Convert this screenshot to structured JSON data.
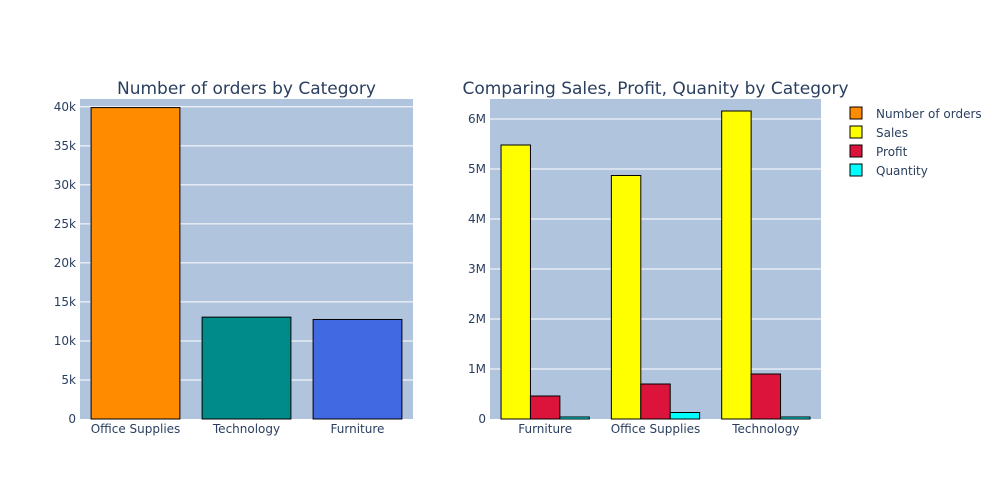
{
  "colors": {
    "plot_bg": "#b0c4de",
    "grid": "#ffffff",
    "bar_outline": "#000000",
    "text": "#2a3f5f"
  },
  "chart_data": [
    {
      "type": "bar",
      "title": "Number of orders by Category",
      "categories": [
        "Office Supplies",
        "Technology",
        "Furniture"
      ],
      "values": [
        39900,
        13050,
        12750
      ],
      "bar_colors": [
        "#ff8c00",
        "#008b8b",
        "#4169e1"
      ],
      "ylim": [
        0,
        41000
      ],
      "yticks": [
        0,
        5000,
        10000,
        15000,
        20000,
        25000,
        30000,
        35000,
        40000
      ],
      "ytick_labels": [
        "0",
        "5k",
        "10k",
        "15k",
        "20k",
        "25k",
        "30k",
        "35k",
        "40k"
      ],
      "grid": true
    },
    {
      "type": "bar",
      "title": "Comparing Sales, Profit, Quanity by Category",
      "categories": [
        "Furniture",
        "Office Supplies",
        "Technology"
      ],
      "series": [
        {
          "name": "Sales",
          "color": "#ffff00",
          "values": [
            5480000,
            4870000,
            6160000
          ]
        },
        {
          "name": "Profit",
          "color": "#dc143c",
          "values": [
            460000,
            700000,
            900000
          ]
        },
        {
          "name": "Quantity",
          "color": "#00ffff",
          "values": [
            40000,
            130000,
            40000
          ]
        }
      ],
      "ylim": [
        0,
        6400000
      ],
      "yticks": [
        0,
        1000000,
        2000000,
        3000000,
        4000000,
        5000000,
        6000000
      ],
      "ytick_labels": [
        "0",
        "1M",
        "2M",
        "3M",
        "4M",
        "5M",
        "6M"
      ],
      "grid": true
    }
  ],
  "legend": {
    "placement": "top-right",
    "items": [
      {
        "name": "Number of orders",
        "color": "#ff8c00"
      },
      {
        "name": "Sales",
        "color": "#ffff00"
      },
      {
        "name": "Profit",
        "color": "#dc143c"
      },
      {
        "name": "Quantity",
        "color": "#00ffff"
      }
    ]
  }
}
